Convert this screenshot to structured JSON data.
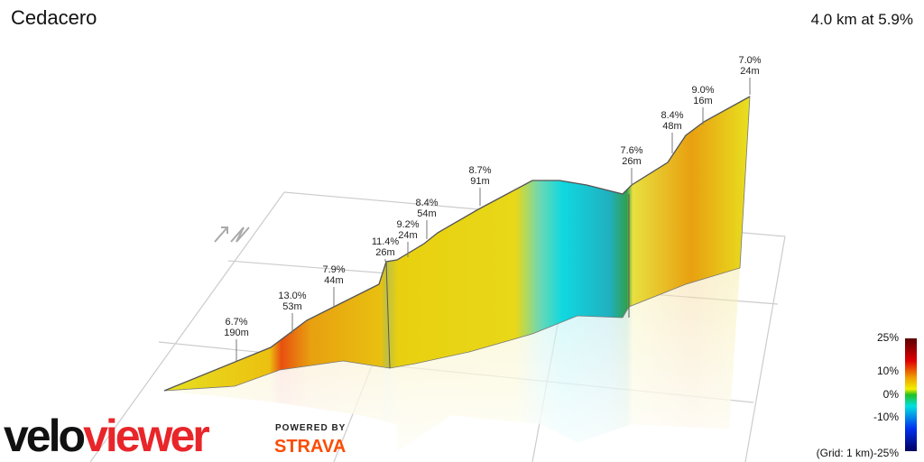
{
  "header": {
    "title": "Cedacero",
    "summary": "4.0 km at 5.9%"
  },
  "annotations": [
    {
      "gradient": "6.7%",
      "length": "190m"
    },
    {
      "gradient": "13.0%",
      "length": "53m"
    },
    {
      "gradient": "7.9%",
      "length": "44m"
    },
    {
      "gradient": "11.4%",
      "length": "26m"
    },
    {
      "gradient": "9.2%",
      "length": "24m"
    },
    {
      "gradient": "8.4%",
      "length": "54m"
    },
    {
      "gradient": "8.7%",
      "length": "91m"
    },
    {
      "gradient": "7.6%",
      "length": "26m"
    },
    {
      "gradient": "8.4%",
      "length": "48m"
    },
    {
      "gradient": "9.0%",
      "length": "16m"
    },
    {
      "gradient": "7.0%",
      "length": "24m"
    }
  ],
  "legend": {
    "labels": [
      "25%",
      "10%",
      "0%",
      "-10%",
      "-25%"
    ],
    "grid_note": "(Grid: 1 km)"
  },
  "branding": {
    "logo_left": "velo",
    "logo_right": "viewer",
    "powered": "POWERED BY",
    "partner": "STRAVA"
  }
}
